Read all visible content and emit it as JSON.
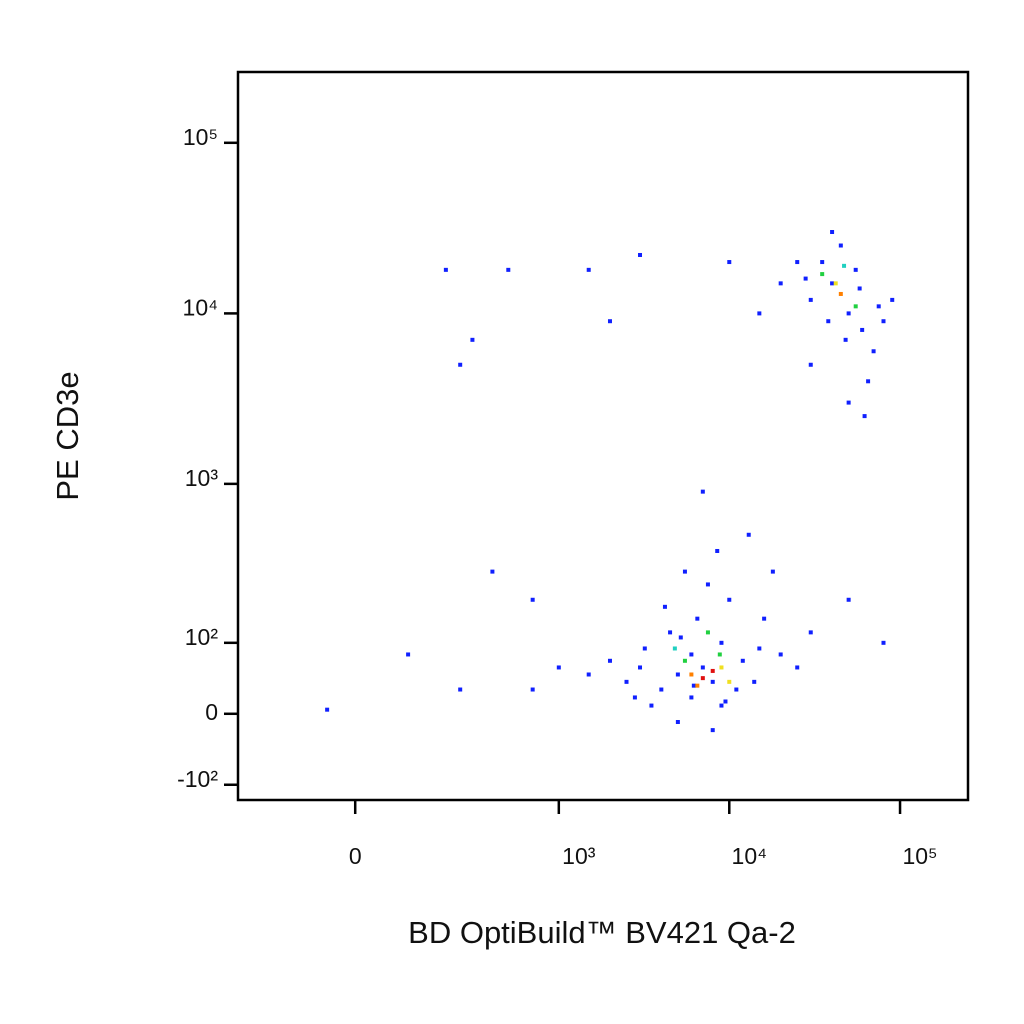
{
  "chart_data": {
    "type": "scatter",
    "x_label": "BD OptiBuild™ BV421 Qa-2",
    "y_label": "PE CD3e",
    "xscale": "biexponential",
    "yscale": "biexponential",
    "xlim": [
      -300,
      250000
    ],
    "ylim": [
      -130,
      260000
    ],
    "xticks": [
      0,
      {
        "value": 1000,
        "label": "10³"
      },
      {
        "value": 10000,
        "label": "10⁴"
      },
      {
        "value": 100000,
        "label": "10⁵"
      }
    ],
    "yticks": [
      {
        "value": -100,
        "label": "-10²"
      },
      0,
      {
        "value": 100,
        "label": "10²"
      },
      {
        "value": 1000,
        "label": "10³"
      },
      {
        "value": 10000,
        "label": "10⁴"
      },
      {
        "value": 100000,
        "label": "10⁵"
      }
    ],
    "points": {
      "x": [
        5000,
        7000,
        8000,
        6000,
        9000,
        4000,
        3000,
        12000,
        15000,
        6500,
        7500,
        8500,
        5500,
        10000,
        20000,
        30000,
        2500,
        2000,
        1500,
        1000,
        700,
        6000,
        9000,
        11000,
        4500,
        13000,
        7000,
        18000,
        25000,
        50000,
        80000,
        8000,
        5000,
        3500,
        3200,
        4200,
        5200,
        6200,
        14000,
        16000,
        2800,
        9500,
        7000,
        8000,
        6500,
        9000,
        5500,
        7500,
        10000,
        6000,
        4800,
        8800,
        40000,
        35000,
        50000,
        60000,
        30000,
        45000,
        70000,
        55000,
        25000,
        20000,
        80000,
        65000,
        15000,
        10000,
        40000,
        30000,
        50000,
        90000,
        38000,
        48000,
        58000,
        28000,
        75000,
        62000,
        42000,
        45000,
        35000,
        55000,
        47000,
        200,
        300,
        250,
        500,
        1500,
        2000,
        3000,
        100,
        -50,
        400,
        700,
        250
      ],
      "y": [
        50,
        60,
        40,
        80,
        100,
        30,
        60,
        70,
        90,
        150,
        250,
        400,
        300,
        200,
        80,
        120,
        40,
        70,
        50,
        60,
        30,
        20,
        10,
        30,
        120,
        500,
        900,
        300,
        60,
        200,
        100,
        -20,
        -10,
        10,
        90,
        180,
        110,
        35,
        40,
        150,
        20,
        15,
        45,
        55,
        35,
        60,
        70,
        120,
        40,
        50,
        90,
        80,
        15000,
        20000,
        10000,
        8000,
        12000,
        25000,
        6000,
        18000,
        20000,
        15000,
        9000,
        4000,
        10000,
        20000,
        30000,
        5000,
        3000,
        12000,
        9000,
        7000,
        14000,
        16000,
        11000,
        2500,
        15000,
        13000,
        17000,
        11000,
        19000,
        18000,
        7000,
        5000,
        18000,
        18000,
        9000,
        22000,
        80,
        5,
        300,
        200,
        30
      ],
      "colors": [
        "#1020ff",
        "#1020ff",
        "#1020ff",
        "#1020ff",
        "#1020ff",
        "#1020ff",
        "#1020ff",
        "#1020ff",
        "#1020ff",
        "#1020ff",
        "#1020ff",
        "#1020ff",
        "#1020ff",
        "#1020ff",
        "#1020ff",
        "#1020ff",
        "#1020ff",
        "#1020ff",
        "#1020ff",
        "#1020ff",
        "#1020ff",
        "#1020ff",
        "#1020ff",
        "#1020ff",
        "#1020ff",
        "#1020ff",
        "#1020ff",
        "#1020ff",
        "#1020ff",
        "#1020ff",
        "#1020ff",
        "#1020ff",
        "#1020ff",
        "#1020ff",
        "#1020ff",
        "#1020ff",
        "#1020ff",
        "#1020ff",
        "#1020ff",
        "#1020ff",
        "#1020ff",
        "#1020ff",
        "#e01010",
        "#e01010",
        "#ff8000",
        "#f0e020",
        "#20d040",
        "#20d040",
        "#f0e020",
        "#ff8000",
        "#20d0c0",
        "#20d040",
        "#1020ff",
        "#1020ff",
        "#1020ff",
        "#1020ff",
        "#1020ff",
        "#1020ff",
        "#1020ff",
        "#1020ff",
        "#1020ff",
        "#1020ff",
        "#1020ff",
        "#1020ff",
        "#1020ff",
        "#1020ff",
        "#1020ff",
        "#1020ff",
        "#1020ff",
        "#1020ff",
        "#1020ff",
        "#1020ff",
        "#1020ff",
        "#1020ff",
        "#1020ff",
        "#1020ff",
        "#f0e020",
        "#ff8000",
        "#20d040",
        "#20d040",
        "#20d0c0",
        "#1020ff",
        "#1020ff",
        "#1020ff",
        "#1020ff",
        "#1020ff",
        "#1020ff",
        "#1020ff",
        "#1020ff",
        "#1020ff",
        "#1020ff",
        "#1020ff",
        "#1020ff"
      ]
    }
  }
}
